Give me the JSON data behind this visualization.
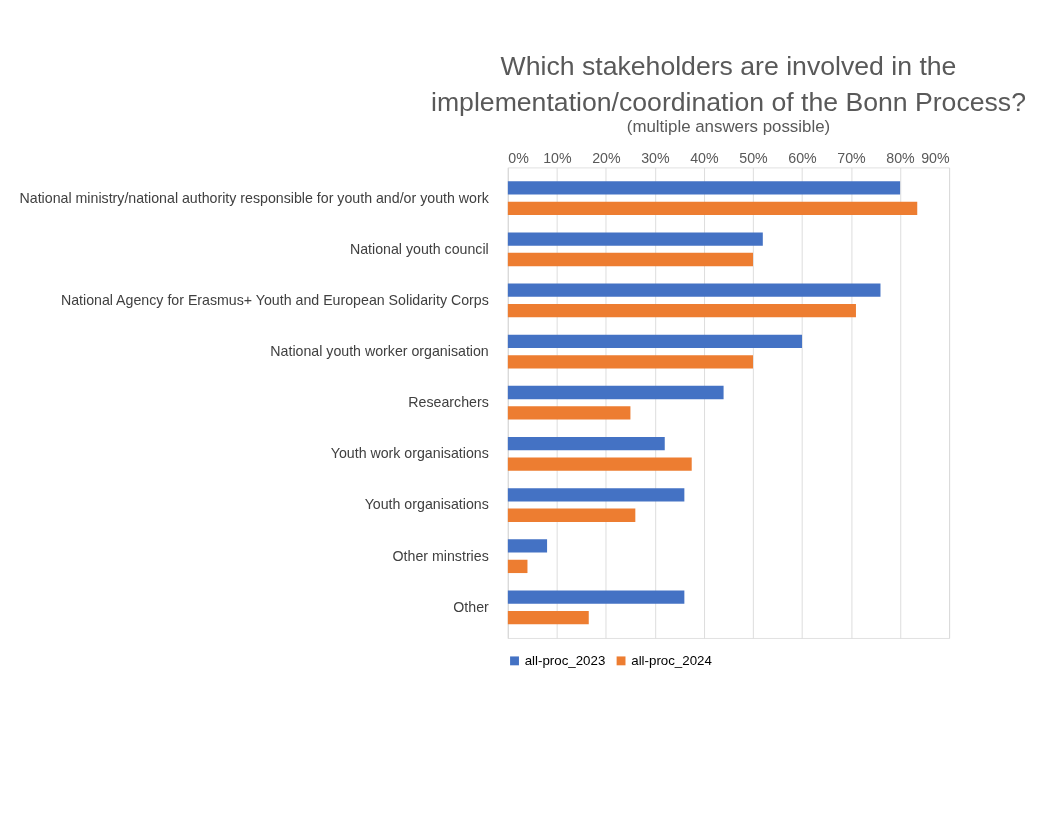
{
  "chart_data": {
    "type": "bar",
    "orientation": "horizontal",
    "title": "Which stakeholders are involved in the implementation/coordination of the Bonn Process?",
    "subtitle": "(multiple answers possible)",
    "categories": [
      "National ministry/national authority responsible for youth and/or youth work",
      "National youth council",
      "National Agency for Erasmus+ Youth and European Solidarity Corps",
      "National youth worker organisation",
      "Researchers",
      "Youth work organisations",
      "Youth organisations",
      "Other minstries",
      "Other"
    ],
    "series": [
      {
        "name": "all-proc_2023",
        "color": "#4472c4",
        "values": [
          80,
          52,
          76,
          60,
          44,
          32,
          36,
          8,
          36
        ]
      },
      {
        "name": "all-proc_2024",
        "color": "#ed7d31",
        "values": [
          83.5,
          50,
          71,
          50,
          25,
          37.5,
          26,
          4,
          16.5
        ]
      }
    ],
    "xlim": [
      0,
      90
    ],
    "xticks": [
      {
        "value": 0,
        "label": "0%"
      },
      {
        "value": 10,
        "label": "10%"
      },
      {
        "value": 20,
        "label": "20%"
      },
      {
        "value": 30,
        "label": "30%"
      },
      {
        "value": 40,
        "label": "40%"
      },
      {
        "value": 50,
        "label": "50%"
      },
      {
        "value": 60,
        "label": "60%"
      },
      {
        "value": 70,
        "label": "70%"
      },
      {
        "value": 80,
        "label": "80%"
      },
      {
        "value": 90,
        "label": "90%"
      }
    ],
    "grid": "x",
    "legend": "bottom"
  }
}
